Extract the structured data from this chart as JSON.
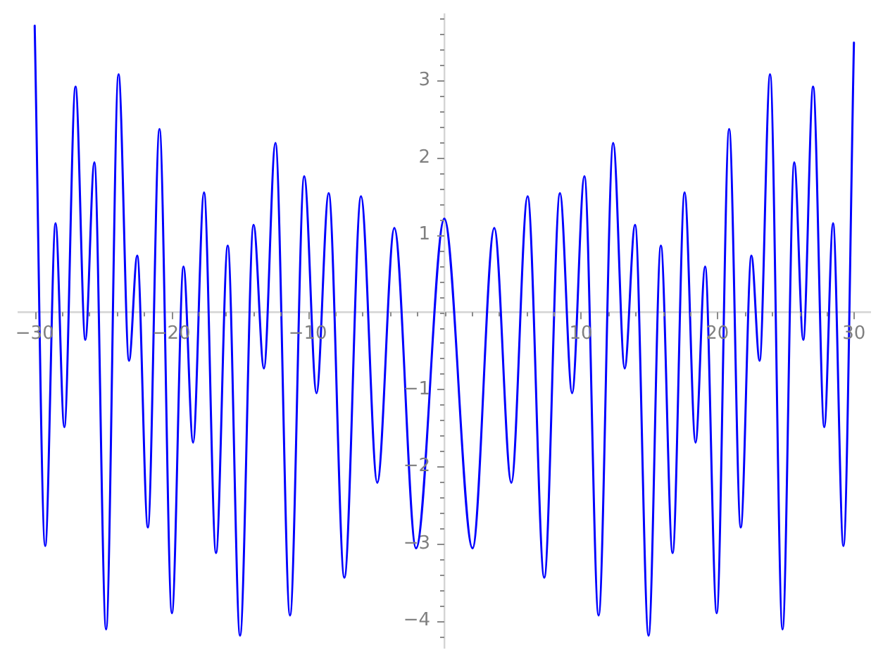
{
  "chart_data": {
    "type": "line",
    "color": "#0000ff",
    "marker": "none",
    "line_style": "solid",
    "x": [
      -30,
      -29.23,
      -28.47,
      -27.83,
      -27.01,
      -26.29,
      -25.63,
      -24.77,
      -23.86,
      -23.09,
      -22.49,
      -21.71,
      -20.86,
      -19.95,
      -19.1,
      -18.4,
      -17.6,
      -16.72,
      -15.86,
      -14.96,
      -13.97,
      -13.21,
      -12.37,
      -11.3,
      -10.26,
      -9.36,
      -8.47,
      -7.32,
      -6.1,
      -4.91,
      -3.66,
      -2.07,
      0,
      2.07,
      3.66,
      4.91,
      6.1,
      7.32,
      8.47,
      9.36,
      10.26,
      11.3,
      12.37,
      13.21,
      13.97,
      14.96,
      15.86,
      16.72,
      17.6,
      18.4,
      19.1,
      19.95,
      20.86,
      21.71,
      22.49,
      23.09,
      23.86,
      24.77,
      25.63,
      26.29,
      27.01,
      27.83,
      28.47,
      29.23,
      30
    ],
    "values": [
      3.71,
      -3.03,
      1.15,
      -1.49,
      2.92,
      -0.36,
      1.94,
      -4.11,
      3.08,
      -0.63,
      0.73,
      -2.79,
      2.37,
      -3.9,
      0.59,
      -1.69,
      1.55,
      -3.12,
      0.86,
      -4.19,
      1.13,
      -0.73,
      2.19,
      -3.93,
      1.76,
      -1.05,
      1.54,
      -3.44,
      1.5,
      -2.21,
      1.09,
      -3.06,
      1.21,
      -3.06,
      1.09,
      -2.21,
      1.5,
      -3.44,
      1.54,
      -1.05,
      1.76,
      -3.93,
      2.19,
      -0.73,
      1.13,
      -4.19,
      0.86,
      -3.12,
      1.55,
      -1.69,
      0.59,
      -3.9,
      2.37,
      -2.79,
      0.73,
      -0.63,
      3.08,
      -4.11,
      1.94,
      -0.36,
      2.92,
      -1.49,
      1.15,
      -3.03,
      3.49
    ],
    "xlim": [
      -31.2,
      31.2
    ],
    "ylim": [
      -4.35,
      3.86
    ],
    "xticks": [
      {
        "value": -30,
        "label": "−30"
      },
      {
        "value": -28,
        "label": null
      },
      {
        "value": -26,
        "label": null
      },
      {
        "value": -24,
        "label": null
      },
      {
        "value": -22,
        "label": null
      },
      {
        "value": -20,
        "label": "−20"
      },
      {
        "value": -18,
        "label": null
      },
      {
        "value": -16,
        "label": null
      },
      {
        "value": -14,
        "label": null
      },
      {
        "value": -12,
        "label": null
      },
      {
        "value": -10,
        "label": "−10"
      },
      {
        "value": -8,
        "label": null
      },
      {
        "value": -6,
        "label": null
      },
      {
        "value": -4,
        "label": null
      },
      {
        "value": -2,
        "label": null
      },
      {
        "value": 0,
        "label": null
      },
      {
        "value": 2,
        "label": null
      },
      {
        "value": 4,
        "label": null
      },
      {
        "value": 6,
        "label": null
      },
      {
        "value": 8,
        "label": null
      },
      10,
      {
        "value": 12,
        "label": null
      },
      {
        "value": 14,
        "label": null
      },
      {
        "value": 16,
        "label": null
      },
      {
        "value": 18,
        "label": null
      },
      20,
      {
        "value": 22,
        "label": null
      },
      {
        "value": 24,
        "label": null
      },
      {
        "value": 26,
        "label": null
      },
      {
        "value": 28,
        "label": null
      },
      30
    ],
    "yticks": [
      {
        "value": -4.2,
        "label": null
      },
      {
        "value": -4,
        "label": "−4"
      },
      {
        "value": -3.8,
        "label": null
      },
      {
        "value": -3.6,
        "label": null
      },
      {
        "value": -3.4,
        "label": null
      },
      {
        "value": -3.2,
        "label": null
      },
      {
        "value": -3,
        "label": "−3"
      },
      {
        "value": -2.8,
        "label": null
      },
      {
        "value": -2.6,
        "label": null
      },
      {
        "value": -2.4,
        "label": null
      },
      {
        "value": -2.2,
        "label": null
      },
      {
        "value": -2,
        "label": "−2"
      },
      {
        "value": -1.8,
        "label": null
      },
      {
        "value": -1.6,
        "label": null
      },
      {
        "value": -1.4,
        "label": null
      },
      {
        "value": -1.2,
        "label": null
      },
      {
        "value": -1,
        "label": "−1"
      },
      {
        "value": -0.8,
        "label": null
      },
      {
        "value": -0.6,
        "label": null
      },
      {
        "value": -0.4,
        "label": null
      },
      {
        "value": -0.2,
        "label": null
      },
      {
        "value": 0,
        "label": null
      },
      {
        "value": 0.2,
        "label": null
      },
      {
        "value": 0.4,
        "label": null
      },
      {
        "value": 0.6,
        "label": null
      },
      {
        "value": 0.8,
        "label": null
      },
      1,
      {
        "value": 1.2,
        "label": null
      },
      {
        "value": 1.4,
        "label": null
      },
      {
        "value": 1.6,
        "label": null
      },
      {
        "value": 1.8,
        "label": null
      },
      2,
      {
        "value": 2.2,
        "label": null
      },
      {
        "value": 2.4,
        "label": null
      },
      {
        "value": 2.6,
        "label": null
      },
      {
        "value": 2.8,
        "label": null
      },
      3,
      {
        "value": 3.2,
        "label": null
      },
      {
        "value": 3.4,
        "label": null
      },
      {
        "value": 3.6,
        "label": null
      },
      {
        "value": 3.8,
        "label": null
      }
    ]
  }
}
